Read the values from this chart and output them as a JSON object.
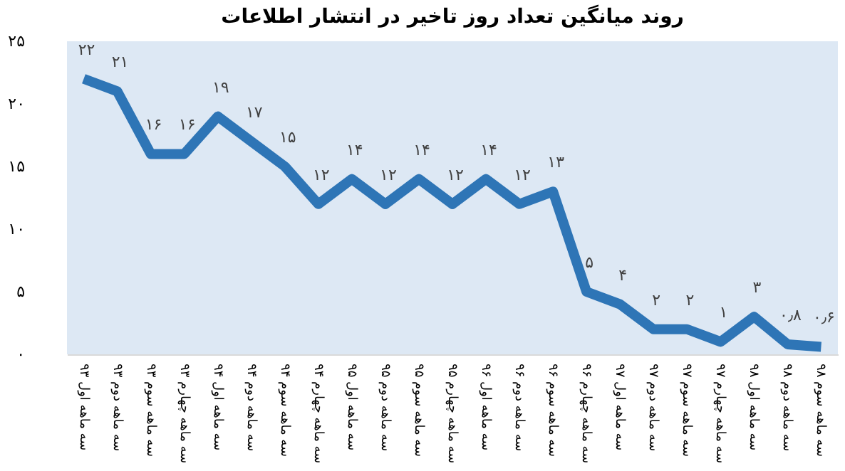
{
  "chart_data": {
    "type": "line",
    "title": "روند میانگین تعداد روز تاخیر در انتشار اطلاعات",
    "categories": [
      "سه ماهه اول ۹۳",
      "سه ماهه دوم ۹۳",
      "سه ماهه سوم ۹۳",
      "سه ماهه چهارم ۹۳",
      "سه ماهه اول ۹۴",
      "سه ماهه دوم ۹۴",
      "سه ماهه سوم ۹۴",
      "سه ماهه چهارم ۹۴",
      "سه ماهه اول ۹۵",
      "سه ماهه دوم ۹۵",
      "سه ماهه سوم ۹۵",
      "سه ماهه چهارم ۹۵",
      "سه ماهه اول ۹۶",
      "سه ماهه دوم ۹۶",
      "سه ماهه سوم ۹۶",
      "سه ماهه چهارم ۹۶",
      "سه ماهه اول ۹۷",
      "سه ماهه دوم ۹۷",
      "سه ماهه سوم ۹۷",
      "سه ماهه چهارم ۹۷",
      "سه ماهه اول ۹۸",
      "سه ماهه دوم ۹۸",
      "سه ماهه سوم ۹۸"
    ],
    "series": [
      {
        "color": "#2e75b6",
        "values": [
          22,
          21,
          16,
          16,
          19,
          17,
          15,
          12,
          14,
          12,
          14,
          12,
          14,
          12,
          13,
          5,
          4,
          2,
          2,
          1,
          3,
          0.8,
          0.6
        ]
      }
    ],
    "value_labels": [
      "۲۲",
      "۲۱",
      "۱۶",
      "۱۶",
      "۱۹",
      "۱۷",
      "۱۵",
      "۱۲",
      "۱۴",
      "۱۲",
      "۱۴",
      "۱۲",
      "۱۴",
      "۱۲",
      "۱۳",
      "۵",
      "۴",
      "۲",
      "۲",
      "۱",
      "۳",
      "۰٫۸",
      "۰٫۶"
    ],
    "ylim": [
      0,
      25
    ],
    "yticks": [
      {
        "value": 0,
        "label": "۰"
      },
      {
        "value": 5,
        "label": "۵"
      },
      {
        "value": 10,
        "label": "۱۰"
      },
      {
        "value": 15,
        "label": "۱۵"
      },
      {
        "value": 20,
        "label": "۲۰"
      },
      {
        "value": 25,
        "label": "۲۵"
      }
    ],
    "grid": false,
    "marker": "none",
    "line_style": "solid"
  }
}
